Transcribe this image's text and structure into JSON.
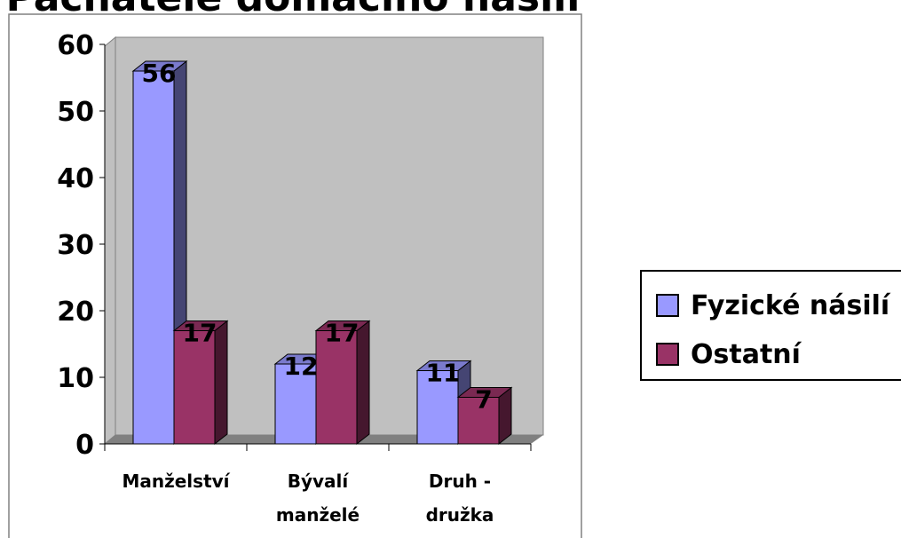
{
  "chart_data": {
    "type": "bar3d",
    "title": "Pachatelé domácího násilí",
    "categories": [
      [
        "Manželství"
      ],
      [
        "Bývalí",
        "manželé"
      ],
      [
        "Druh -",
        "družka"
      ]
    ],
    "series": [
      {
        "name": "Fyzické násilí",
        "color": "#9999ff",
        "values": [
          56,
          12,
          11
        ]
      },
      {
        "name": "Ostatní",
        "color": "#993366",
        "values": [
          17,
          17,
          7
        ]
      }
    ],
    "ylim": [
      0,
      60
    ],
    "yticks": [
      0,
      10,
      20,
      30,
      40,
      50,
      60
    ],
    "legend": "right"
  }
}
